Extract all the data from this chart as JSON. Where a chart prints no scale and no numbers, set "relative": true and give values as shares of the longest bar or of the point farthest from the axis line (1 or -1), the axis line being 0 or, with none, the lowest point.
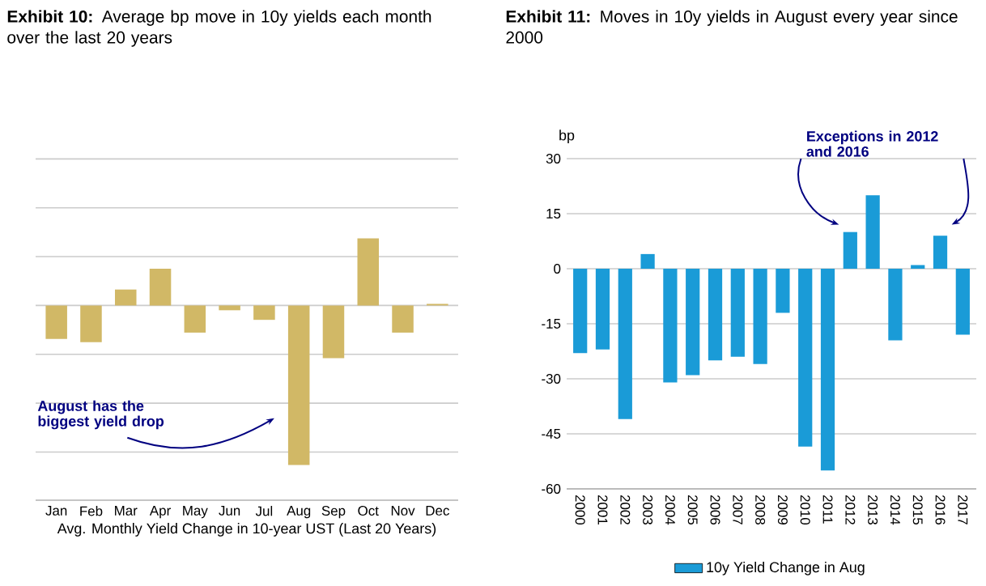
{
  "chart_data": [
    {
      "type": "bar",
      "title": "**Exhibit 10:** Average bp move in 10y yields each month over the last 20 years",
      "xlabel": "Avg. Monthly Yield Change in 10-year UST (Last 20 Years)",
      "relative": true,
      "grid": "y",
      "categories": [
        "Jan",
        "Feb",
        "Mar",
        "Apr",
        "May",
        "Jun",
        "Jul",
        "Aug",
        "Sep",
        "Oct",
        "Nov",
        "Dec"
      ],
      "series": [
        {
          "color": "#d1b866",
          "values": [
            -0.21,
            -0.23,
            0.1,
            0.23,
            -0.17,
            -0.03,
            -0.09,
            -1,
            -0.33,
            0.42,
            -0.17,
            0.01
          ]
        }
      ],
      "annotations": [
        "August  has the biggest yield drop"
      ]
    },
    {
      "type": "bar",
      "title": "**Exhibit 11:** Moves in 10y yields in August every year since 2000",
      "ylabel": "bp",
      "grid": "y",
      "legend": "bottom",
      "categories": [
        "2000",
        "2001",
        "2002",
        "2003",
        "2004",
        "2005",
        "2006",
        "2007",
        "2008",
        "2009",
        "2010",
        "2011",
        "2012",
        "2013",
        "2014",
        "2015",
        "2016",
        "2017"
      ],
      "ylim": [
        -60,
        30
      ],
      "yticks": [
        -60,
        -45,
        -30,
        -15,
        0,
        15,
        30
      ],
      "series": [
        {
          "name": "10y Yield Change in Aug",
          "color": "#1a9bd7",
          "values": [
            -23,
            -22,
            -41,
            4,
            -31,
            -29,
            -25,
            -24,
            -26,
            -12,
            -48.5,
            -55,
            10,
            20,
            -19.5,
            1,
            9,
            -18
          ]
        }
      ],
      "annotations": [
        "Exceptions in 2012 and 2016"
      ]
    }
  ]
}
